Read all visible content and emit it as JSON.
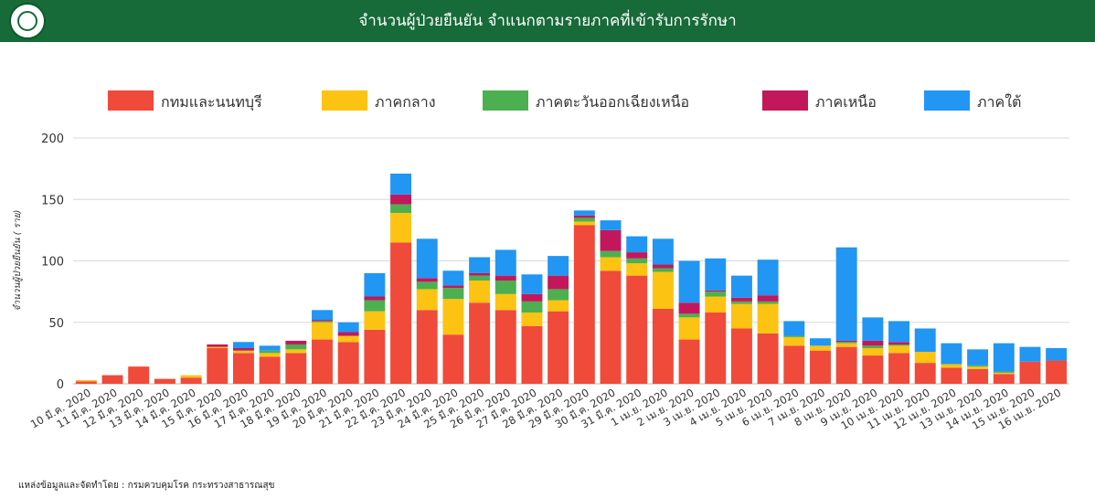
{
  "header": {
    "title": "จำนวนผู้ป่วยยืนยัน จำแนกตามรายภาคที่เข้ารับการรักษา"
  },
  "footer": {
    "source": "แหล่งข้อมูลและจัดทำโดย : กรมควบคุมโรค กระทรวงสาธารณสุข"
  },
  "colors": {
    "header_bg": "#166B38"
  },
  "chart_data": {
    "type": "bar",
    "stacked": true,
    "title": "",
    "xlabel": "",
    "ylabel": "จำนวนผู้ป่วยยืนยัน ( ราย)",
    "ylim": [
      0,
      200
    ],
    "yticks": [
      0,
      50,
      100,
      150,
      200
    ],
    "grid": true,
    "legend_position": "top",
    "categories": [
      "10 มี.ค. 2020",
      "11 มี.ค. 2020",
      "12 มี.ค. 2020",
      "13 มี.ค. 2020",
      "14 มี.ค. 2020",
      "15 มี.ค. 2020",
      "16 มี.ค. 2020",
      "17 มี.ค. 2020",
      "18 มี.ค. 2020",
      "19 มี.ค. 2020",
      "20 มี.ค. 2020",
      "21 มี.ค. 2020",
      "22 มี.ค. 2020",
      "23 มี.ค. 2020",
      "24 มี.ค. 2020",
      "25 มี.ค. 2020",
      "26 มี.ค. 2020",
      "27 มี.ค. 2020",
      "28 มี.ค. 2020",
      "29 มี.ค. 2020",
      "30 มี.ค. 2020",
      "31 มี.ค. 2020",
      "1 เม.ย. 2020",
      "2 เม.ย. 2020",
      "3 เม.ย. 2020",
      "4 เม.ย. 2020",
      "5 เม.ย. 2020",
      "6 เม.ย. 2020",
      "7 เม.ย. 2020",
      "8 เม.ย. 2020",
      "9 เม.ย. 2020",
      "10 เม.ย. 2020",
      "11 เม.ย. 2020",
      "12 เม.ย. 2020",
      "13 เม.ย. 2020",
      "14 เม.ย. 2020",
      "15 เม.ย. 2020",
      "16 เม.ย. 2020"
    ],
    "series": [
      {
        "name": "กทมและนนทบุรี",
        "color": "#F04A3A",
        "values": [
          2,
          7,
          14,
          4,
          5,
          29,
          25,
          22,
          25,
          36,
          34,
          44,
          115,
          60,
          40,
          66,
          60,
          47,
          59,
          129,
          92,
          88,
          61,
          36,
          58,
          45,
          41,
          31,
          27,
          30,
          23,
          25,
          17,
          13,
          12,
          8,
          18,
          19
        ]
      },
      {
        "name": "ภาคกลาง",
        "color": "#FCC312",
        "values": [
          1,
          0,
          0,
          0,
          2,
          1,
          2,
          3,
          3,
          14,
          5,
          15,
          24,
          17,
          29,
          18,
          13,
          11,
          9,
          3,
          11,
          10,
          30,
          18,
          13,
          20,
          24,
          7,
          4,
          3,
          6,
          6,
          9,
          3,
          2,
          1,
          0,
          0
        ]
      },
      {
        "name": "ภาคตะวันออกเฉียงเหนือ",
        "color": "#4CB050",
        "values": [
          0,
          0,
          0,
          0,
          0,
          0,
          0,
          2,
          4,
          1,
          0,
          9,
          7,
          6,
          9,
          4,
          11,
          9,
          9,
          3,
          5,
          4,
          3,
          3,
          4,
          2,
          2,
          1,
          0,
          1,
          2,
          1,
          0,
          0,
          1,
          1,
          0,
          0
        ]
      },
      {
        "name": "ภาคเหนือ",
        "color": "#C2185B",
        "values": [
          0,
          0,
          0,
          0,
          0,
          2,
          2,
          0,
          3,
          1,
          3,
          3,
          8,
          3,
          2,
          2,
          4,
          6,
          11,
          2,
          17,
          5,
          3,
          9,
          1,
          3,
          5,
          0,
          0,
          1,
          4,
          2,
          0,
          0,
          0,
          0,
          0,
          0
        ]
      },
      {
        "name": "ภาคใต้",
        "color": "#2196F3",
        "values": [
          0,
          0,
          0,
          0,
          0,
          0,
          5,
          4,
          0,
          8,
          8,
          19,
          17,
          32,
          12,
          13,
          21,
          16,
          16,
          4,
          8,
          13,
          21,
          34,
          26,
          18,
          29,
          12,
          6,
          76,
          19,
          17,
          19,
          17,
          13,
          23,
          12,
          10
        ]
      }
    ]
  }
}
